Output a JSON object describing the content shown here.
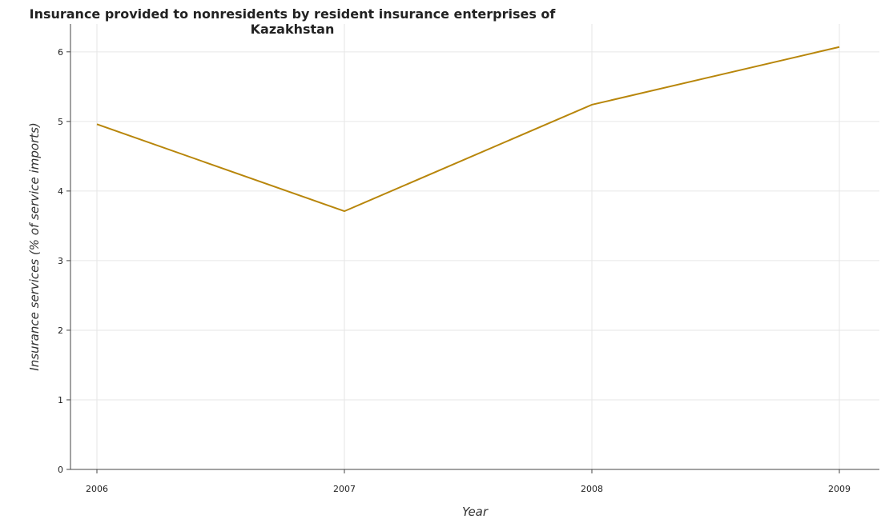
{
  "chart_data": {
    "type": "line",
    "title": "Insurance provided to nonresidents by resident insurance enterprises of Kazakhstan",
    "xlabel": "Year",
    "ylabel": "Insurance services (% of service imports)",
    "categories": [
      "2006",
      "2007",
      "2008",
      "2009"
    ],
    "series": [
      {
        "values": [
          4.96,
          3.71,
          5.24,
          6.07
        ],
        "color": "#b8860b"
      }
    ],
    "ylim": [
      0,
      6.4
    ],
    "yticks": [
      0,
      1,
      2,
      3,
      4,
      5,
      6
    ],
    "grid": true,
    "legend": "none"
  }
}
